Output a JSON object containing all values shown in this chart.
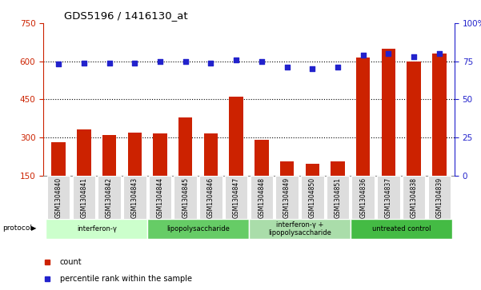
{
  "title": "GDS5196 / 1416130_at",
  "samples": [
    "GSM1304840",
    "GSM1304841",
    "GSM1304842",
    "GSM1304843",
    "GSM1304844",
    "GSM1304845",
    "GSM1304846",
    "GSM1304847",
    "GSM1304848",
    "GSM1304849",
    "GSM1304850",
    "GSM1304851",
    "GSM1304836",
    "GSM1304837",
    "GSM1304838",
    "GSM1304839"
  ],
  "counts": [
    280,
    330,
    310,
    320,
    315,
    380,
    315,
    460,
    290,
    205,
    195,
    205,
    615,
    650,
    600,
    630
  ],
  "percentiles": [
    73,
    74,
    74,
    74,
    75,
    75,
    74,
    76,
    75,
    71,
    70,
    71,
    79,
    80,
    78,
    80
  ],
  "groups": [
    {
      "label": "interferon-γ",
      "start": 0,
      "end": 4,
      "color": "#ccffcc"
    },
    {
      "label": "lipopolysaccharide",
      "start": 4,
      "end": 8,
      "color": "#66cc66"
    },
    {
      "label": "interferon-γ +\nlipopolysaccharide",
      "start": 8,
      "end": 12,
      "color": "#aaddaa"
    },
    {
      "label": "untreated control",
      "start": 12,
      "end": 16,
      "color": "#44bb44"
    }
  ],
  "ylim_left": [
    150,
    750
  ],
  "ylim_right": [
    0,
    100
  ],
  "bar_color": "#cc2200",
  "dot_color": "#2222cc",
  "yticks_left": [
    150,
    300,
    450,
    600,
    750
  ],
  "yticks_right": [
    0,
    25,
    50,
    75,
    100
  ],
  "hlines": [
    300,
    450,
    600
  ],
  "bg_color": "#ffffff",
  "sample_box_color": "#dddddd",
  "right_axis_color": "#2222cc",
  "left_axis_color": "#cc2200"
}
